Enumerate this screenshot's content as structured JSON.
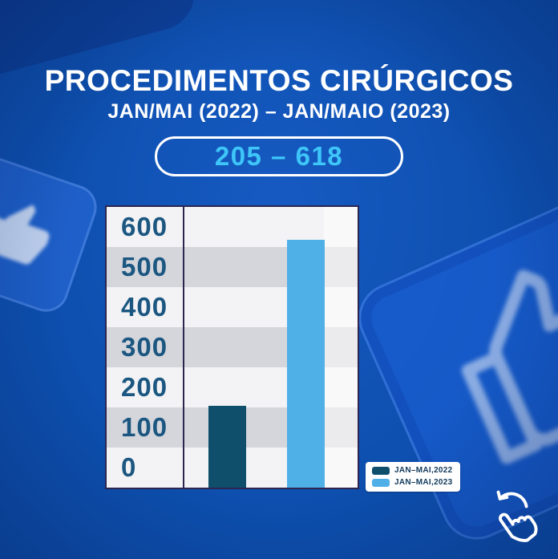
{
  "header": {
    "title": "PROCEDIMENTOS CIRÚRGICOS",
    "subtitle": "JAN/MAI (2022) – JAN/MAIO (2023)",
    "badge": "205 – 618"
  },
  "chart_data": {
    "type": "bar",
    "categories": [
      "JAN–MAI,2022",
      "JAN–MAI,2023"
    ],
    "values": [
      205,
      618
    ],
    "yticks": [
      600,
      500,
      400,
      300,
      200,
      100,
      0
    ],
    "ylim": [
      0,
      700
    ],
    "grid": "horizontal-bands",
    "legend_position": "bottom-right",
    "series_colors": [
      "#0f4f6c",
      "#4fb0e8"
    ],
    "legend": [
      {
        "label": "JAN–MAI,2022",
        "color": "#0f4f6c"
      },
      {
        "label": "JAN–MAI,2023",
        "color": "#4fb0e8"
      }
    ]
  },
  "colors": {
    "background": "#0d4fae",
    "badge_text": "#3ec6f9",
    "axis_label": "#1b5781",
    "panel_border": "#2b2550",
    "band_light": "#f3f3f5",
    "band_dark": "#d5d5dc",
    "bar_2022": "#0f4f6c",
    "bar_2023": "#4fb0e8"
  },
  "icons": {
    "swipe_hint": "swipe-back-hand",
    "decor_left": "thumbs-up",
    "decor_right": "thumbs-up-outline"
  }
}
